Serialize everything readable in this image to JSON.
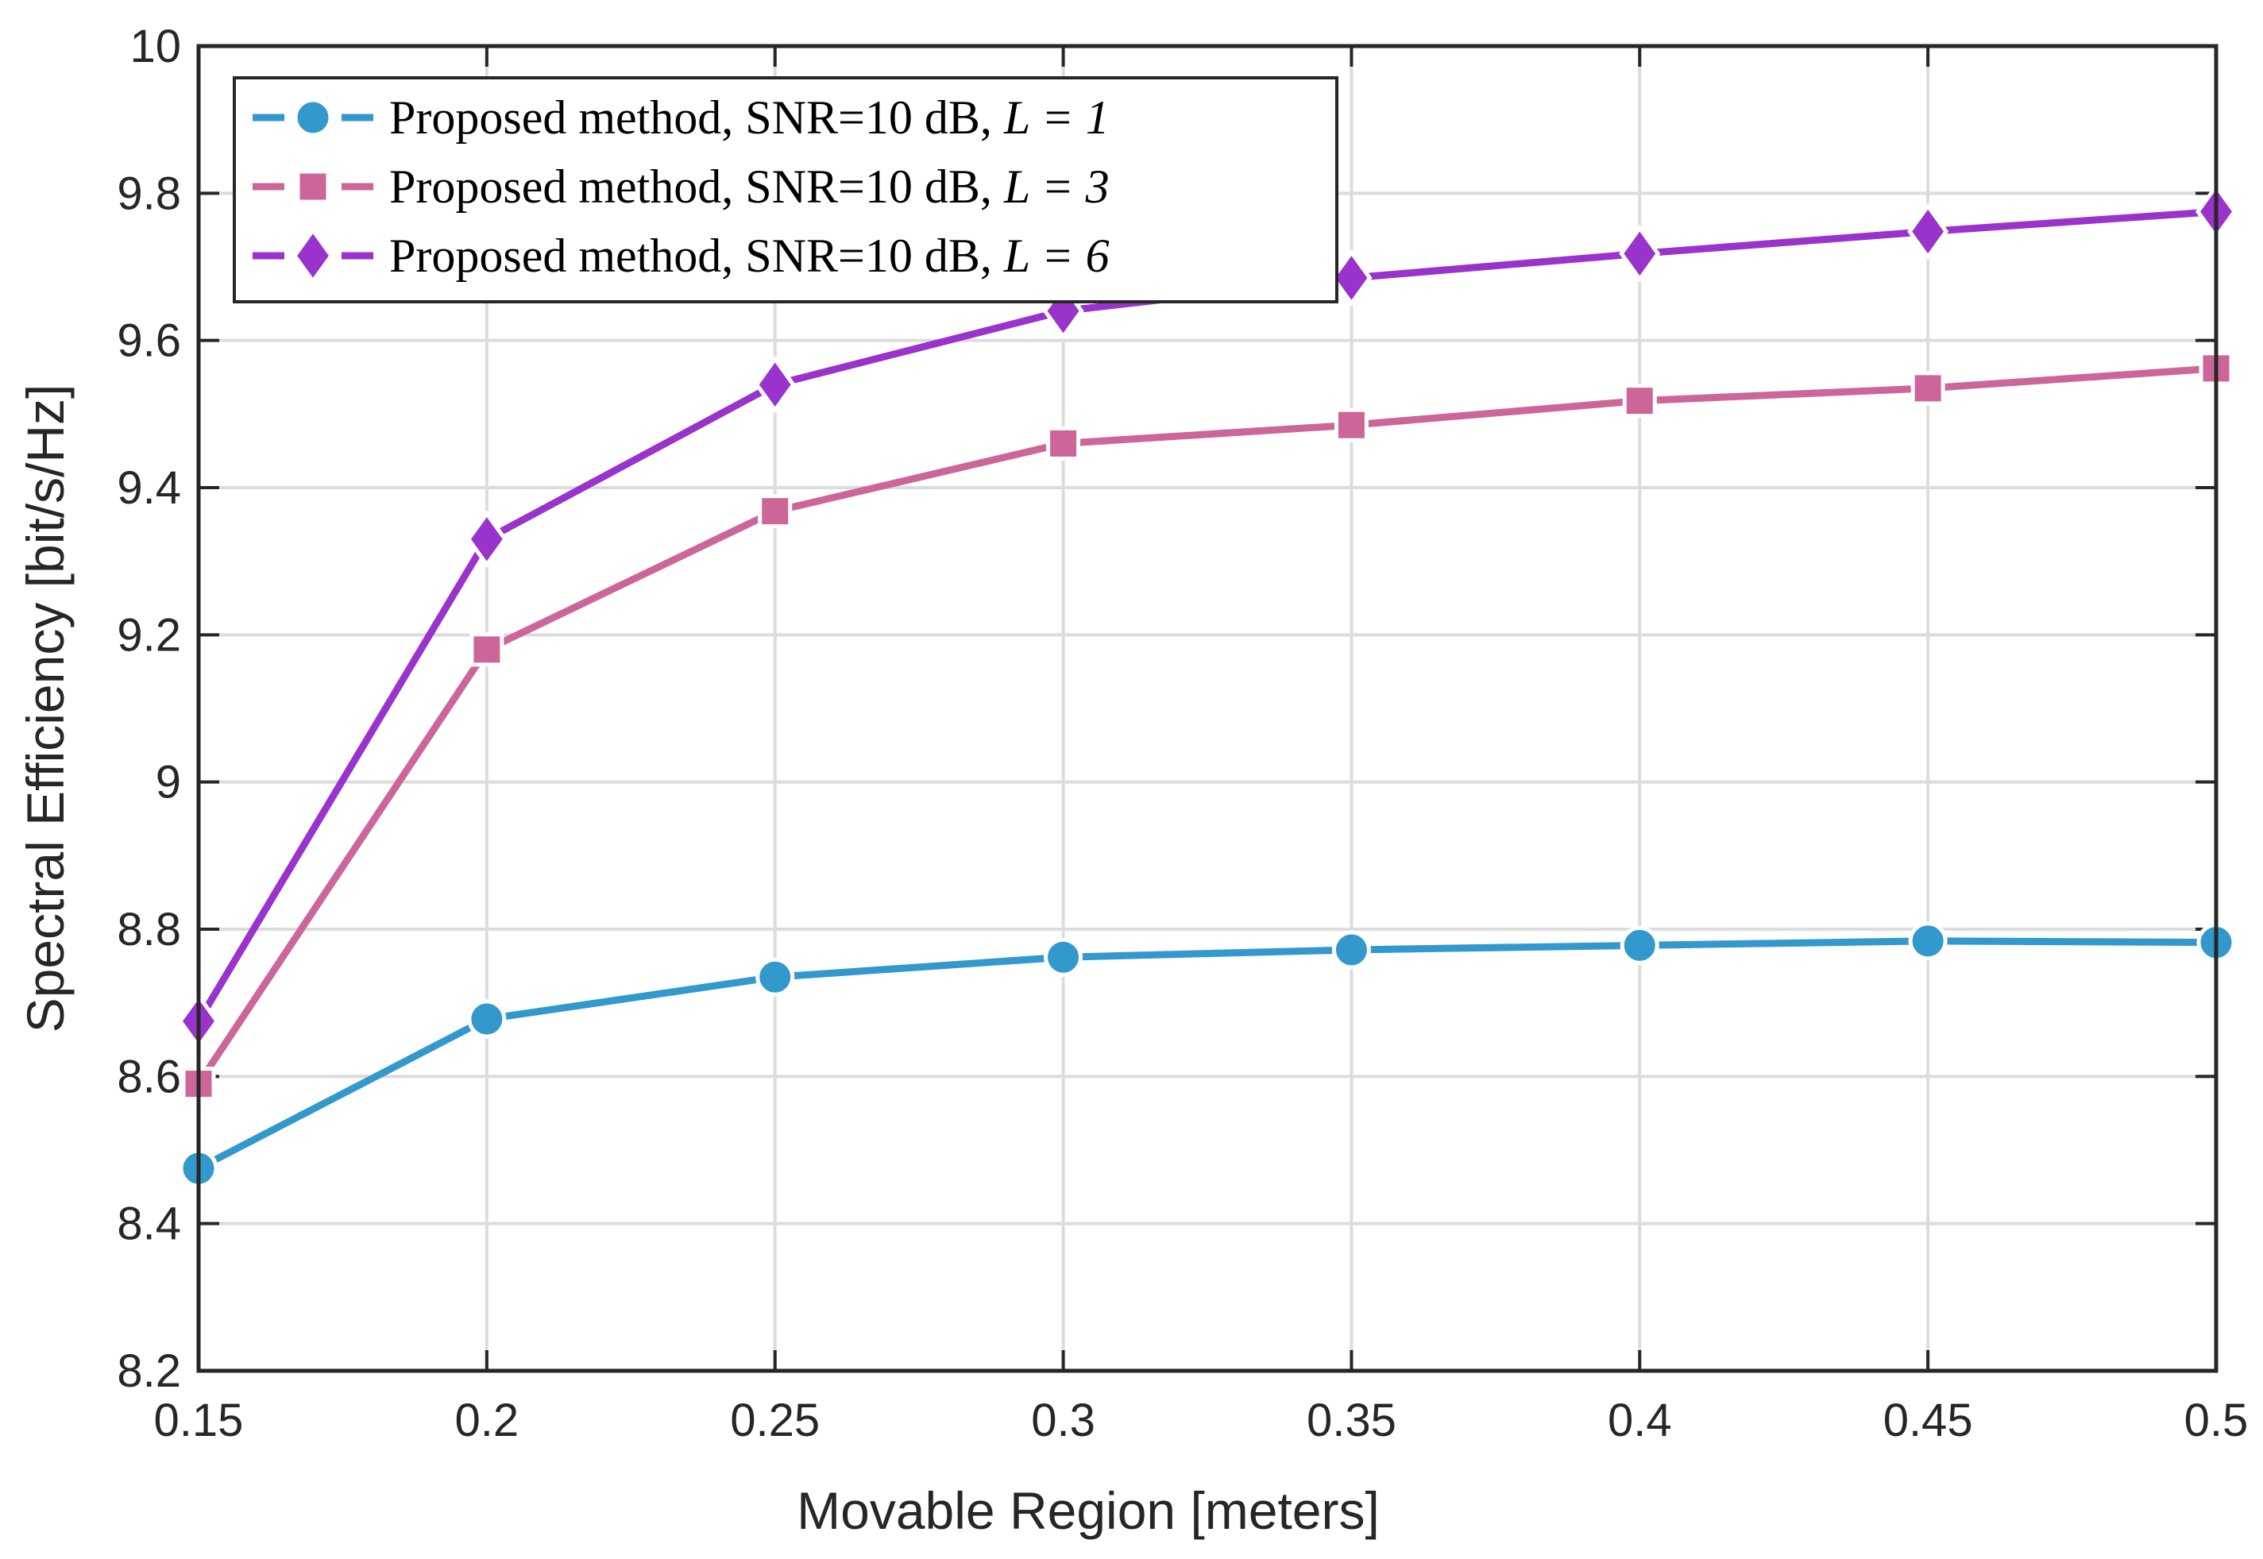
{
  "chart_data": {
    "type": "line",
    "title": "",
    "xlabel": "Movable Region [meters]",
    "ylabel": "Spectral Efficiency [bit/s/Hz]",
    "xlim": [
      0.15,
      0.5
    ],
    "ylim": [
      8.2,
      10
    ],
    "grid": true,
    "legend_position": "top-left",
    "x": [
      0.15,
      0.2,
      0.25,
      0.3,
      0.35,
      0.4,
      0.45,
      0.5
    ],
    "x_tick_labels": [
      "0.15",
      "0.2",
      "0.25",
      "0.3",
      "0.35",
      "0.4",
      "0.45",
      "0.5"
    ],
    "y_ticks": [
      8.2,
      8.4,
      8.6,
      8.8,
      9,
      9.2,
      9.4,
      9.6,
      9.8,
      10
    ],
    "y_tick_labels": [
      "8.2",
      "8.4",
      "8.6",
      "8.8",
      "9",
      "9.2",
      "9.4",
      "9.6",
      "9.8",
      "10"
    ],
    "series": [
      {
        "name": "Proposed method, SNR=10 dB, L = 1",
        "legend_prefix": "Proposed method, SNR=10 dB, ",
        "legend_math": "L = 1",
        "color": "#3399cc",
        "marker": "circle",
        "values": [
          8.475,
          8.678,
          8.735,
          8.762,
          8.772,
          8.778,
          8.784,
          8.782
        ]
      },
      {
        "name": "Proposed method, SNR=10 dB, L = 3",
        "legend_prefix": "Proposed method, SNR=10 dB, ",
        "legend_math": "L = 3",
        "color": "#cc6699",
        "marker": "square",
        "values": [
          8.59,
          9.18,
          9.368,
          9.46,
          9.485,
          9.518,
          9.535,
          9.562
        ]
      },
      {
        "name": "Proposed method, SNR=10 dB, L = 6",
        "legend_prefix": "Proposed method, SNR=10 dB, ",
        "legend_math": "L = 6",
        "color": "#9933cc",
        "marker": "diamond",
        "values": [
          8.675,
          9.33,
          9.54,
          9.64,
          9.685,
          9.718,
          9.748,
          9.775
        ]
      }
    ]
  }
}
